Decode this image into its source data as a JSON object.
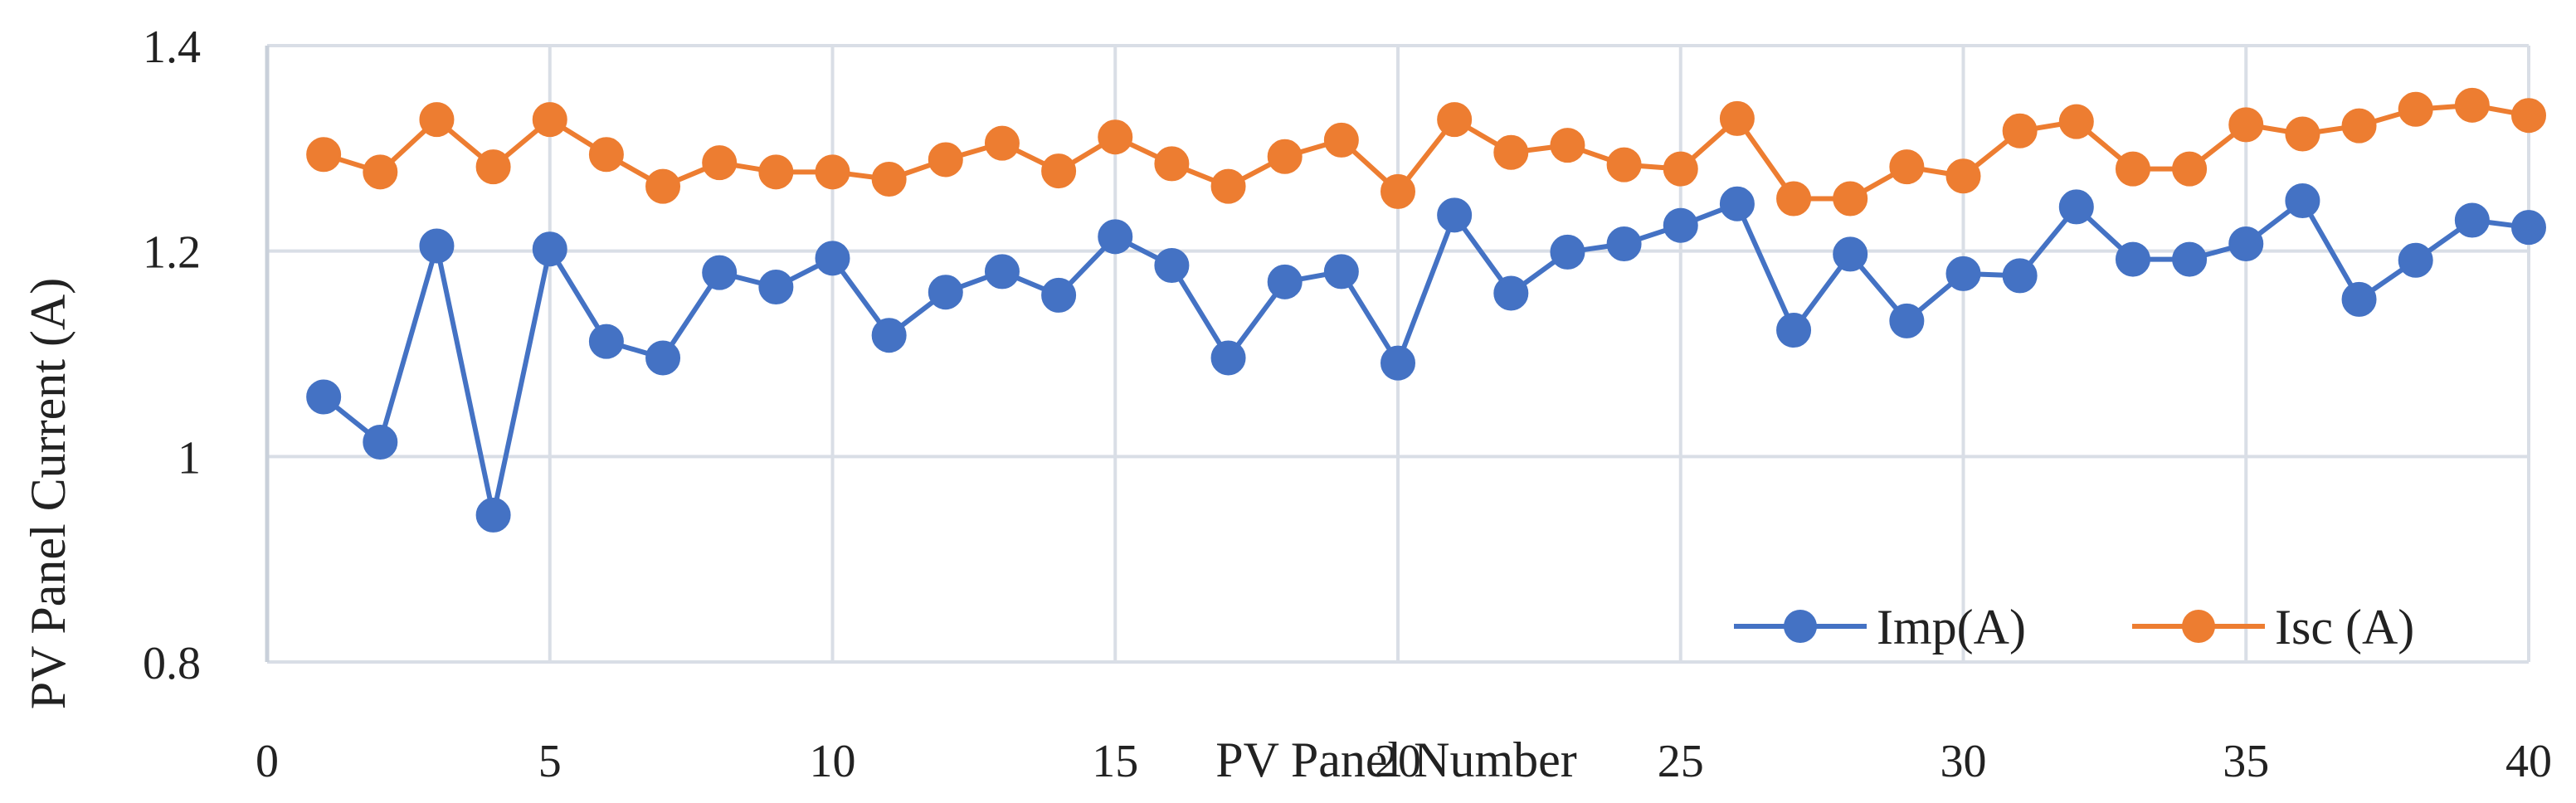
{
  "chart_data": {
    "type": "line",
    "xlabel": "PV Panel Number",
    "ylabel": "PV Panel Current (A)",
    "xlim": [
      0,
      40
    ],
    "ylim": [
      0.8,
      1.4
    ],
    "xticks": [
      "0",
      "5",
      "10",
      "15",
      "20",
      "25",
      "30",
      "35",
      "40"
    ],
    "yticks": [
      "0.8",
      "1",
      "1.2",
      "1.4"
    ],
    "grid": true,
    "legend_position": "bottom-right",
    "x": [
      1,
      2,
      3,
      4,
      5,
      6,
      7,
      8,
      9,
      10,
      11,
      12,
      13,
      14,
      15,
      16,
      17,
      18,
      19,
      20,
      21,
      22,
      23,
      24,
      25,
      26,
      27,
      28,
      29,
      30,
      31,
      32,
      33,
      34,
      35,
      36,
      37,
      38,
      39,
      40
    ],
    "series": [
      {
        "name": "Imp(A)",
        "color": "#4472C4",
        "values": [
          1.058,
          1.014,
          1.205,
          0.943,
          1.202,
          1.112,
          1.096,
          1.179,
          1.165,
          1.193,
          1.118,
          1.16,
          1.18,
          1.157,
          1.214,
          1.186,
          1.096,
          1.17,
          1.18,
          1.091,
          1.235,
          1.159,
          1.199,
          1.207,
          1.225,
          1.246,
          1.123,
          1.197,
          1.132,
          1.178,
          1.176,
          1.243,
          1.192,
          1.192,
          1.207,
          1.249,
          1.153,
          1.191,
          1.23,
          1.223
        ]
      },
      {
        "name": "Isc (A)",
        "color": "#ED7D31",
        "values": [
          1.294,
          1.277,
          1.328,
          1.282,
          1.328,
          1.294,
          1.263,
          1.286,
          1.277,
          1.277,
          1.27,
          1.289,
          1.305,
          1.278,
          1.311,
          1.285,
          1.263,
          1.292,
          1.308,
          1.258,
          1.328,
          1.296,
          1.303,
          1.284,
          1.28,
          1.329,
          1.251,
          1.251,
          1.282,
          1.273,
          1.317,
          1.326,
          1.28,
          1.28,
          1.323,
          1.314,
          1.322,
          1.338,
          1.342,
          1.332
        ]
      }
    ]
  }
}
